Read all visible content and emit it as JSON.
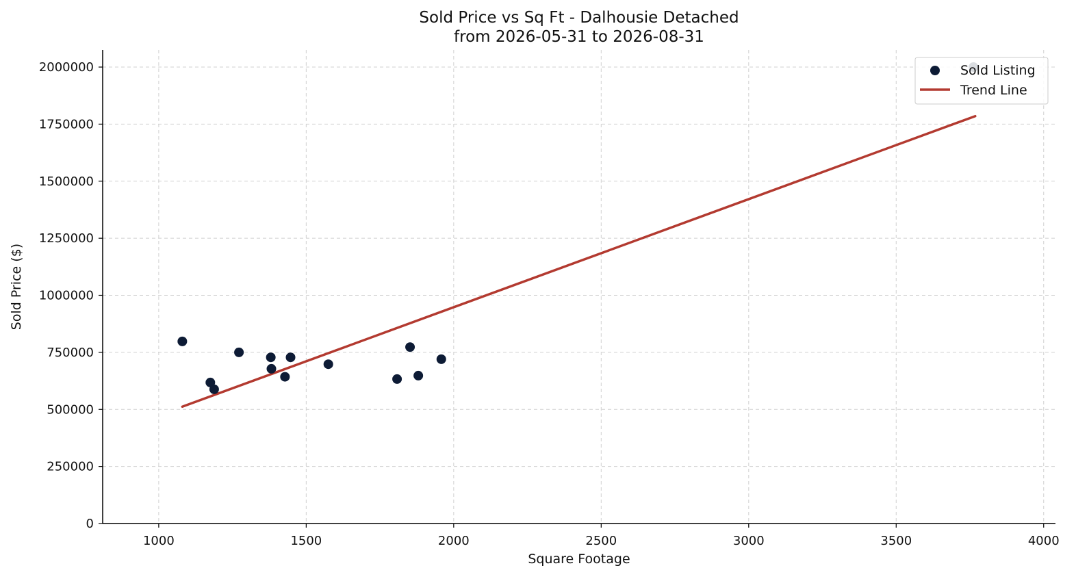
{
  "chart_data": {
    "type": "scatter",
    "title": "Sold Price vs Sq Ft - Dalhousie Detached",
    "subtitle": "from 2026-05-31 to 2026-08-31",
    "xlabel": "Square Footage",
    "ylabel": "Sold Price ($)",
    "xlim": [
      810,
      4040
    ],
    "ylim": [
      0,
      2075000
    ],
    "x_ticks": [
      1000,
      1500,
      2000,
      2500,
      3000,
      3500,
      4000
    ],
    "y_ticks": [
      0,
      250000,
      500000,
      750000,
      1000000,
      1250000,
      1500000,
      1750000,
      2000000
    ],
    "x_tick_labels": [
      "1000",
      "1500",
      "2000",
      "2500",
      "3000",
      "3500",
      "4000"
    ],
    "y_tick_labels": [
      "0",
      "250000",
      "500000",
      "750000",
      "1000000",
      "1250000",
      "1500000",
      "1750000",
      "2000000"
    ],
    "grid": true,
    "legend_position": "top-right",
    "series": [
      {
        "name": "Sold Listing",
        "kind": "scatter",
        "color": "#0d1b35",
        "points": [
          {
            "x": 1080,
            "y": 798000
          },
          {
            "x": 1175,
            "y": 618000
          },
          {
            "x": 1188,
            "y": 588000
          },
          {
            "x": 1272,
            "y": 750000
          },
          {
            "x": 1380,
            "y": 728000
          },
          {
            "x": 1382,
            "y": 678000
          },
          {
            "x": 1428,
            "y": 643000
          },
          {
            "x": 1447,
            "y": 728000
          },
          {
            "x": 1575,
            "y": 698000
          },
          {
            "x": 1808,
            "y": 633000
          },
          {
            "x": 1852,
            "y": 773000
          },
          {
            "x": 1880,
            "y": 648000
          },
          {
            "x": 1958,
            "y": 720000
          },
          {
            "x": 3762,
            "y": 2000000
          }
        ]
      },
      {
        "name": "Trend Line",
        "kind": "line",
        "color": "#b33a30",
        "points": [
          {
            "x": 1080,
            "y": 512000
          },
          {
            "x": 3768,
            "y": 1785000
          }
        ]
      }
    ]
  }
}
